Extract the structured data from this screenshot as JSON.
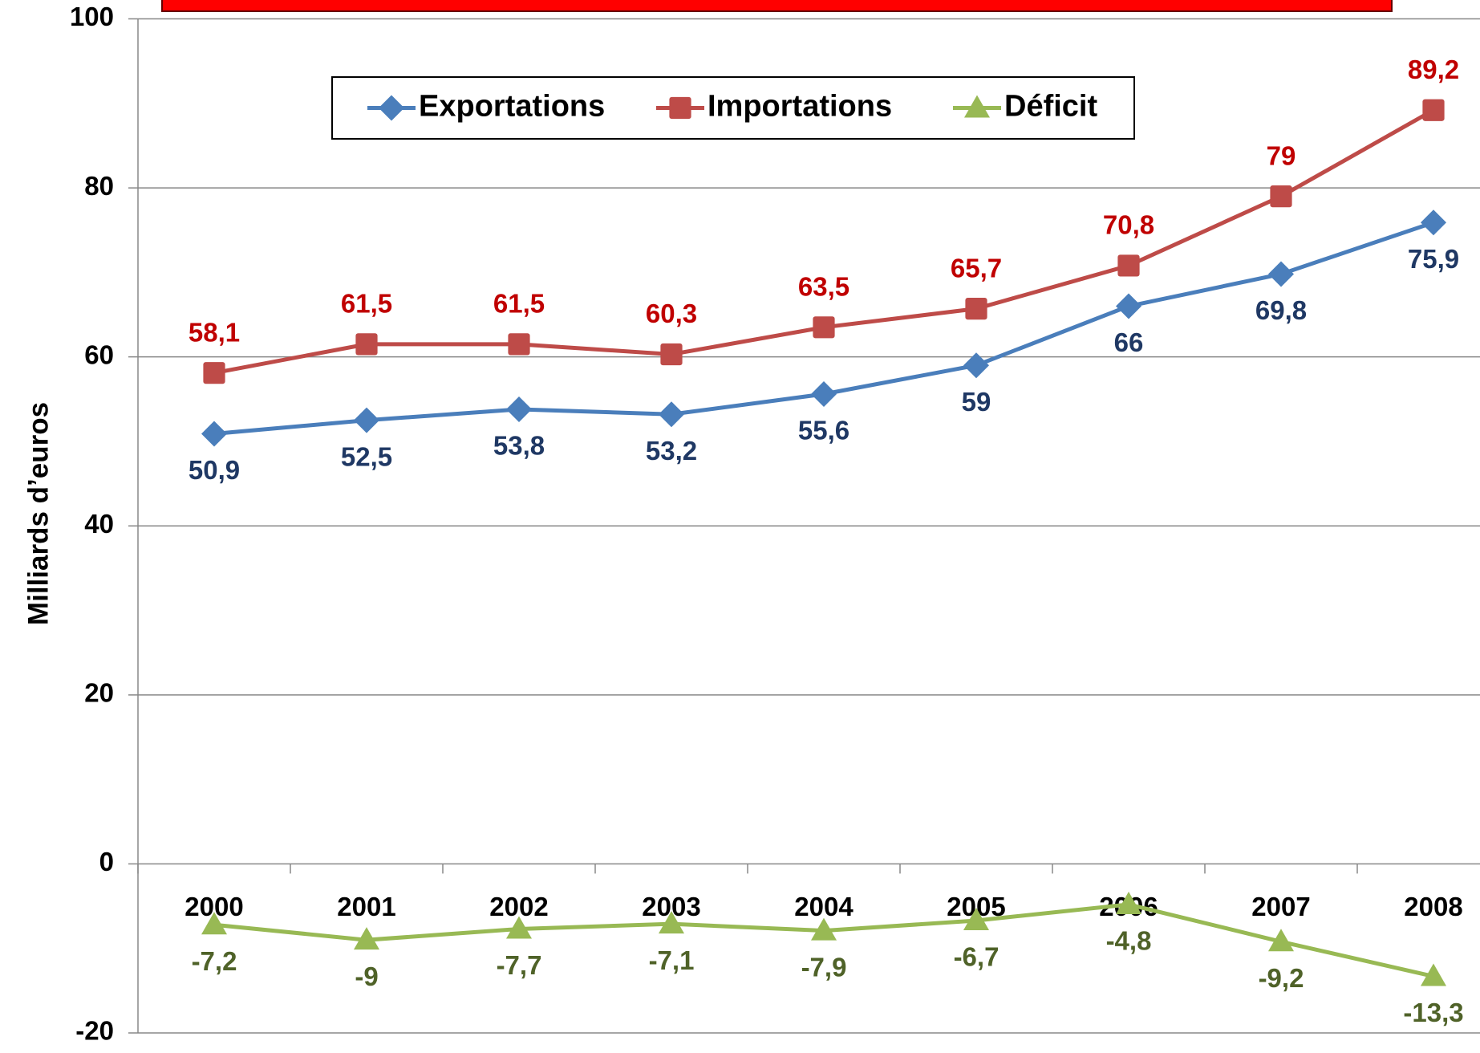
{
  "chart_data": {
    "type": "line",
    "y_label": "Milliards d’euros",
    "categories": [
      "2000",
      "2001",
      "2002",
      "2003",
      "2004",
      "2005",
      "2006",
      "2007",
      "2008"
    ],
    "series": [
      {
        "name": "Exportations",
        "color": "#4a7ebb",
        "label_color": "#1f3864",
        "marker": "diamond",
        "values": [
          50.9,
          52.5,
          53.8,
          53.2,
          55.6,
          59,
          66,
          69.8,
          75.9
        ],
        "value_labels": [
          "50,9",
          "52,5",
          "53,8",
          "53,2",
          "55,6",
          "59",
          "66",
          "69,8",
          "75,9"
        ]
      },
      {
        "name": "Importations",
        "color": "#be4b48",
        "label_color": "#c00000",
        "marker": "square",
        "values": [
          58.1,
          61.5,
          61.5,
          60.3,
          63.5,
          65.7,
          70.8,
          79,
          89.2
        ],
        "value_labels": [
          "58,1",
          "61,5",
          "61,5",
          "60,3",
          "63,5",
          "65,7",
          "70,8",
          "79",
          "89,2"
        ]
      },
      {
        "name": "Déficit",
        "color": "#98b954",
        "label_color": "#4f6228",
        "marker": "triangle",
        "values": [
          -7.2,
          -9,
          -7.7,
          -7.1,
          -7.9,
          -6.7,
          -4.8,
          -9.2,
          -13.3
        ],
        "value_labels": [
          "-7,2",
          "-9",
          "-7,7",
          "-7,1",
          "-7,9",
          "-6,7",
          "-4,8",
          "-9,2",
          "-13,3"
        ]
      }
    ],
    "ylim": [
      -20,
      100
    ],
    "yticks": [
      -20,
      0,
      20,
      40,
      60,
      80,
      100
    ],
    "grid": true,
    "legend": "top"
  }
}
